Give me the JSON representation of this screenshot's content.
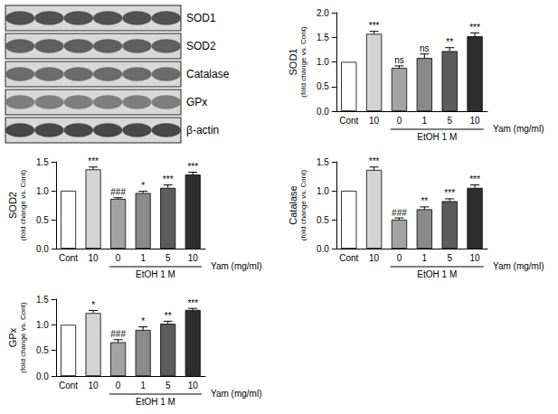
{
  "blot": {
    "labels": [
      "SOD1",
      "SOD2",
      "Catalase",
      "GPx",
      "β-actin"
    ]
  },
  "chart_data": [
    {
      "type": "bar",
      "ylabel": "SOD1",
      "ylabel_note": "(fold change vs. Cont)",
      "categories": [
        "Cont",
        "10",
        "0",
        "1",
        "5",
        "10"
      ],
      "x_label": "Yam (mg/ml)",
      "group_label": "EtOH 1 M",
      "group_members": [
        false,
        false,
        true,
        true,
        true,
        true
      ],
      "values": [
        1.0,
        1.57,
        0.88,
        1.08,
        1.22,
        1.52
      ],
      "errors": [
        0,
        0.05,
        0.04,
        0.08,
        0.07,
        0.07
      ],
      "annotations": [
        null,
        "***",
        "ns",
        "ns",
        "**",
        "***"
      ],
      "colors": [
        "#ffffff",
        "#d4d4d4",
        "#a3a3a3",
        "#8a8a8a",
        "#5c5c5c",
        "#2e2e2e"
      ],
      "ylim": [
        0,
        2.0
      ],
      "yticks": [
        {
          "value": 0,
          "label": "0.0"
        },
        {
          "value": 0.5,
          "label": "0.5"
        },
        {
          "value": 1.0,
          "label": "1.0"
        },
        {
          "value": 1.5,
          "label": "1.5"
        },
        {
          "value": 2.0,
          "label": "2.0"
        }
      ],
      "grid": false
    },
    {
      "type": "bar",
      "ylabel": "SOD2",
      "ylabel_note": "(fold change vs. Cont)",
      "categories": [
        "Cont",
        "10",
        "0",
        "1",
        "5",
        "10"
      ],
      "x_label": "Yam (mg/ml)",
      "group_label": "EtOH 1 M",
      "group_members": [
        false,
        false,
        true,
        true,
        true,
        true
      ],
      "values": [
        1.0,
        1.37,
        0.86,
        0.96,
        1.05,
        1.28
      ],
      "errors": [
        0,
        0.04,
        0.02,
        0.03,
        0.05,
        0.04
      ],
      "annotations": [
        null,
        "***",
        "###",
        "*",
        "***",
        "***"
      ],
      "colors": [
        "#ffffff",
        "#d4d4d4",
        "#a3a3a3",
        "#8a8a8a",
        "#5c5c5c",
        "#2e2e2e"
      ],
      "ylim": [
        0,
        1.5
      ],
      "yticks": [
        {
          "value": 0,
          "label": "0.0"
        },
        {
          "value": 0.5,
          "label": "0.5"
        },
        {
          "value": 1.0,
          "label": "1.0"
        },
        {
          "value": 1.5,
          "label": "1.5"
        }
      ],
      "grid": false
    },
    {
      "type": "bar",
      "ylabel": "Catalase",
      "ylabel_note": "(fold change vs. Cont)",
      "categories": [
        "Cont",
        "10",
        "0",
        "1",
        "5",
        "10"
      ],
      "x_label": "Yam (mg/ml)",
      "group_label": "EtOH 1 M",
      "group_members": [
        false,
        false,
        true,
        true,
        true,
        true
      ],
      "values": [
        1.0,
        1.36,
        0.5,
        0.68,
        0.82,
        1.05
      ],
      "errors": [
        0,
        0.05,
        0.03,
        0.04,
        0.04,
        0.05
      ],
      "annotations": [
        null,
        "***",
        "###",
        "**",
        "***",
        "***"
      ],
      "colors": [
        "#ffffff",
        "#d4d4d4",
        "#a3a3a3",
        "#8a8a8a",
        "#5c5c5c",
        "#2e2e2e"
      ],
      "ylim": [
        0,
        1.5
      ],
      "yticks": [
        {
          "value": 0,
          "label": "0.0"
        },
        {
          "value": 0.5,
          "label": "0.5"
        },
        {
          "value": 1.0,
          "label": "1.0"
        },
        {
          "value": 1.5,
          "label": "1.5"
        }
      ],
      "grid": false
    },
    {
      "type": "bar",
      "ylabel": "GPx",
      "ylabel_note": "(fold change vs. Cont)",
      "categories": [
        "Cont",
        "10",
        "0",
        "1",
        "5",
        "10"
      ],
      "x_label": "Yam (mg/ml)",
      "group_label": "EtOH 1 M",
      "group_members": [
        false,
        false,
        true,
        true,
        true,
        true
      ],
      "values": [
        1.0,
        1.23,
        0.66,
        0.9,
        1.02,
        1.29
      ],
      "errors": [
        0,
        0.05,
        0.05,
        0.06,
        0.05,
        0.03
      ],
      "annotations": [
        null,
        "*",
        "###",
        "*",
        "**",
        "***"
      ],
      "colors": [
        "#ffffff",
        "#d4d4d4",
        "#a3a3a3",
        "#8a8a8a",
        "#5c5c5c",
        "#2e2e2e"
      ],
      "ylim": [
        0,
        1.5
      ],
      "yticks": [
        {
          "value": 0,
          "label": "0.0"
        },
        {
          "value": 0.5,
          "label": "0.5"
        },
        {
          "value": 1.0,
          "label": "1.0"
        },
        {
          "value": 1.5,
          "label": "1.5"
        }
      ],
      "grid": false
    }
  ]
}
